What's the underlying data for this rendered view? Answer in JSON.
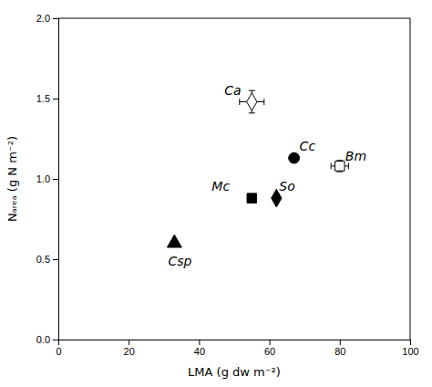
{
  "chart_data": {
    "type": "scatter",
    "xlabel": "LMA (g dw m⁻²)",
    "ylabel": "Nₐᵣₑₐ (g N m⁻²)",
    "xlim": [
      0,
      100
    ],
    "ylim": [
      0.0,
      2.0
    ],
    "xticks": [
      0,
      20,
      40,
      60,
      80,
      100
    ],
    "yticks": [
      {
        "value": 0.0,
        "label": "0.0"
      },
      0.5,
      {
        "value": 1.0,
        "label": "1.0"
      },
      1.5,
      {
        "value": 2.0,
        "label": "2.0"
      }
    ],
    "series": [
      {
        "name": "Ca",
        "x": [
          55
        ],
        "values": [
          1.48
        ],
        "marker": "diamond",
        "color": "white",
        "xerr": [
          3.5
        ],
        "yerr": [
          0.07
        ]
      },
      {
        "name": "Csp",
        "x": [
          33
        ],
        "values": [
          0.6
        ],
        "marker": "triangle",
        "color": "black"
      },
      {
        "name": "Cc",
        "x": [
          67
        ],
        "values": [
          1.13
        ],
        "marker": "circle",
        "color": "black"
      },
      {
        "name": "Mc",
        "x": [
          55
        ],
        "values": [
          0.88
        ],
        "marker": "square",
        "color": "black"
      },
      {
        "name": "So",
        "x": [
          62
        ],
        "values": [
          0.88
        ],
        "marker": "diamond",
        "color": "black"
      },
      {
        "name": "Bm",
        "x": [
          80
        ],
        "values": [
          1.08
        ],
        "marker": "square",
        "color": "white",
        "xerr": [
          2.5
        ],
        "yerr": [
          0.035
        ]
      }
    ]
  }
}
